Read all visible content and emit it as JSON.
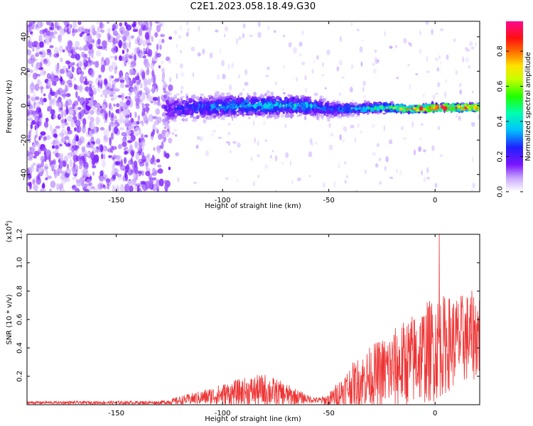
{
  "title": "C2E1.2023.058.18.49.G30",
  "chart_data": [
    {
      "type": "heatmap",
      "xlabel": "Height of straight line (km)",
      "ylabel": "Frequency (Hz)",
      "xlim": [
        -192,
        21
      ],
      "ylim": [
        -50,
        49
      ],
      "x_ticks": [
        -150,
        -100,
        -50,
        0
      ],
      "x_tick_labels": [
        "-150",
        "-100",
        "-50",
        "0"
      ],
      "y_ticks": [
        -40,
        -20,
        0,
        20,
        40
      ],
      "y_tick_labels": [
        "-40",
        "-20",
        "0",
        "20",
        "40"
      ],
      "colorbar": {
        "label": "Normalized spectral amplitude",
        "range": [
          0.0,
          0.97
        ],
        "ticks": [
          0.0,
          0.2,
          0.4,
          0.6,
          0.8
        ],
        "tick_labels": [
          "0.0",
          "0.2",
          "0.4",
          "0.6",
          "0.8"
        ],
        "colormap": "rainbow: white-violet-blue-cyan-green-yellow-orange-red-magenta"
      },
      "band": [
        {
          "x": -192,
          "f_center": 0,
          "half_width": 50,
          "amp": 0.08
        },
        {
          "x": -130,
          "f_center": 0,
          "half_width": 50,
          "amp": 0.06
        },
        {
          "x": -125,
          "f_center": -2,
          "half_width": 11,
          "amp": 0.18
        },
        {
          "x": -110,
          "f_center": -1,
          "half_width": 10,
          "amp": 0.25
        },
        {
          "x": -90,
          "f_center": 0,
          "half_width": 9,
          "amp": 0.32
        },
        {
          "x": -75,
          "f_center": 0,
          "half_width": 8,
          "amp": 0.35
        },
        {
          "x": -60,
          "f_center": 0,
          "half_width": 8,
          "amp": 0.33
        },
        {
          "x": -50,
          "f_center": -2,
          "half_width": 7,
          "amp": 0.25
        },
        {
          "x": -40,
          "f_center": -2,
          "half_width": 5,
          "amp": 0.32
        },
        {
          "x": -25,
          "f_center": -1,
          "half_width": 4,
          "amp": 0.45
        },
        {
          "x": -10,
          "f_center": -2,
          "half_width": 3,
          "amp": 0.72
        },
        {
          "x": 5,
          "f_center": -1,
          "half_width": 3,
          "amp": 0.85
        },
        {
          "x": 21,
          "f_center": -1,
          "half_width": 3,
          "amp": 0.78
        }
      ]
    },
    {
      "type": "line",
      "xlabel": "Height of straight line (km)",
      "ylabel": "SNR (10 * v/v)",
      "y_scale_label": "(x10",
      "y_scale_exp": "4",
      "y_scale_close": ")",
      "xlim": [
        -192,
        21
      ],
      "ylim": [
        0.0,
        1.2
      ],
      "x_ticks": [
        -150,
        -100,
        -50,
        0
      ],
      "x_tick_labels": [
        "-150",
        "-100",
        "-50",
        "0"
      ],
      "y_ticks": [
        0.2,
        0.4,
        0.6,
        0.8,
        1.0,
        1.2
      ],
      "y_tick_labels": [
        "0.2",
        "0.4",
        "0.6",
        "0.8",
        "1.0",
        "1.2"
      ],
      "color": "#ee3333",
      "envelope": {
        "x": [
          -192,
          -130,
          -125,
          -110,
          -100,
          -90,
          -80,
          -70,
          -60,
          -55,
          -50,
          -45,
          -40,
          -30,
          -20,
          -10,
          0,
          10,
          21
        ],
        "base": [
          0.015,
          0.015,
          0.02,
          0.05,
          0.07,
          0.09,
          0.1,
          0.07,
          0.04,
          0.03,
          0.03,
          0.08,
          0.13,
          0.2,
          0.25,
          0.32,
          0.4,
          0.45,
          0.5
        ],
        "amplitude": [
          0.01,
          0.012,
          0.02,
          0.05,
          0.08,
          0.1,
          0.12,
          0.08,
          0.03,
          0.02,
          0.05,
          0.1,
          0.15,
          0.22,
          0.28,
          0.33,
          0.38,
          0.32,
          0.32
        ]
      },
      "peak": {
        "x": 2,
        "y": 1.2
      }
    }
  ]
}
